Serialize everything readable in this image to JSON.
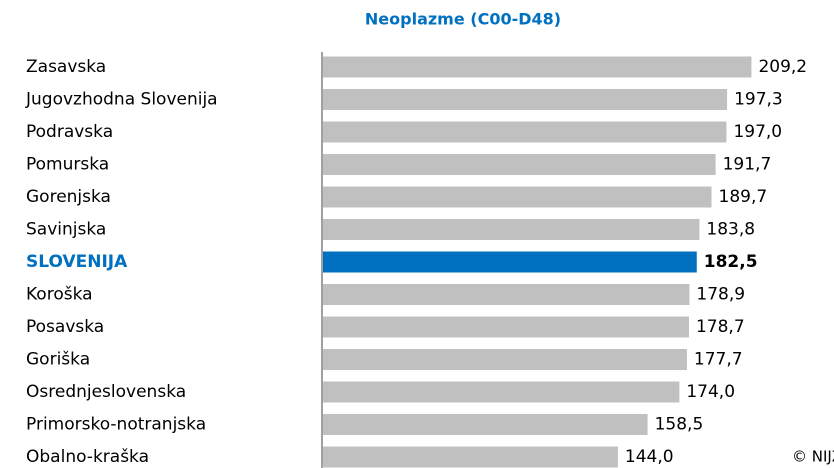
{
  "chart_data": {
    "type": "bar",
    "orientation": "horizontal",
    "title": "Neoplazme (C00-D48)",
    "categories": [
      "Zasavska",
      "Jugovzhodna Slovenija",
      "Podravska",
      "Pomurska",
      "Gorenjska",
      "Savinjska",
      "SLOVENIJA",
      "Koroška",
      "Posavska",
      "Goriška",
      "Osrednjeslovenska",
      "Primorsko-notranjska",
      "Obalno-kraška"
    ],
    "values": [
      209.2,
      197.3,
      197.0,
      191.7,
      189.7,
      183.8,
      182.5,
      178.9,
      178.7,
      177.7,
      174.0,
      158.5,
      144.0
    ],
    "value_labels": [
      "209,2",
      "197,3",
      "197,0",
      "191,7",
      "189,7",
      "183,8",
      "182,5",
      "178,9",
      "178,7",
      "177,7",
      "174,0",
      "158,5",
      "144,0"
    ],
    "colors": [
      "#c0c0c0",
      "#c0c0c0",
      "#c0c0c0",
      "#c0c0c0",
      "#c0c0c0",
      "#c0c0c0",
      "#0070c0",
      "#c0c0c0",
      "#c0c0c0",
      "#c0c0c0",
      "#c0c0c0",
      "#c0c0c0",
      "#c0c0c0"
    ],
    "xlim": [
      0,
      250
    ],
    "annotation": "© NIJZ"
  }
}
